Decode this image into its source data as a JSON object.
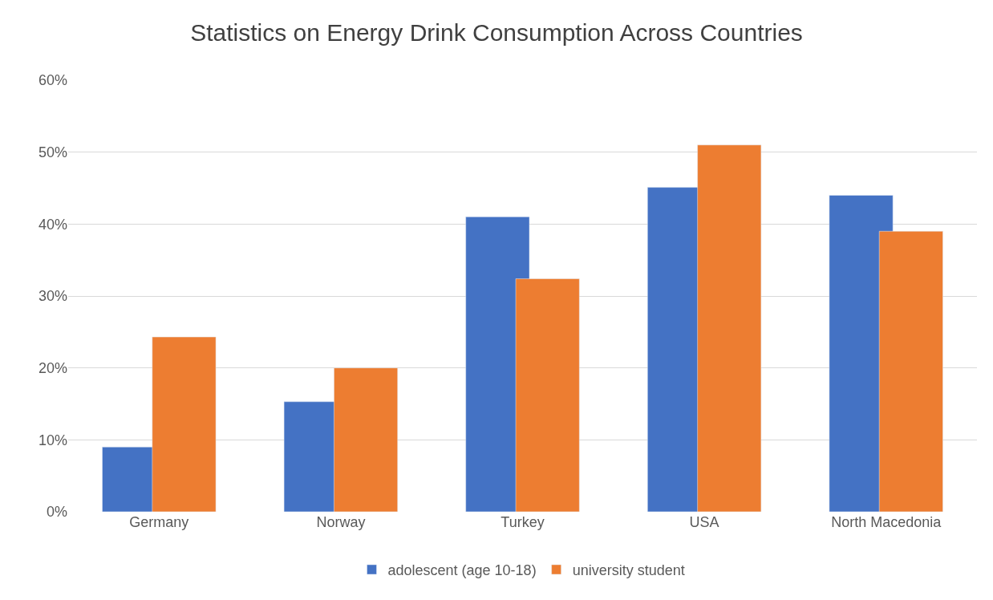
{
  "chart_data": {
    "type": "bar",
    "title": "Statistics on Energy Drink Consumption Across Countries",
    "categories": [
      "Germany",
      "Norway",
      "Turkey",
      "USA",
      "North Macedonia"
    ],
    "series": [
      {
        "name": "adolescent (age 10-18)",
        "color": "#4472c4",
        "values": [
          9,
          15.3,
          41,
          45.1,
          44
        ]
      },
      {
        "name": "university student",
        "color": "#ed7d31",
        "values": [
          24.3,
          20,
          32.4,
          51,
          39
        ]
      }
    ],
    "ylim": [
      0,
      60
    ],
    "yticks": [
      {
        "value": 0,
        "label": "0%"
      },
      {
        "value": 10,
        "label": "10%"
      },
      {
        "value": 20,
        "label": "20%"
      },
      {
        "value": 30,
        "label": "30%"
      },
      {
        "value": 40,
        "label": "40%"
      },
      {
        "value": 50,
        "label": "50%"
      },
      {
        "value": 60,
        "label": "60%"
      }
    ],
    "grid": "y",
    "legend": "bottom"
  }
}
